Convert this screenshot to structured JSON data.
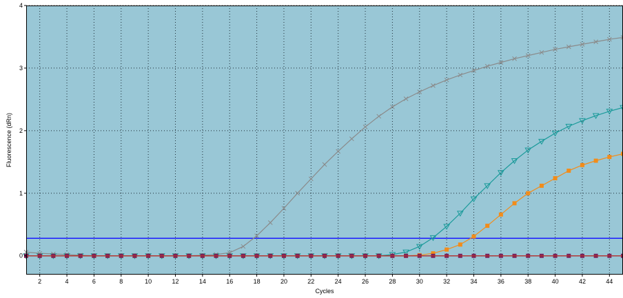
{
  "chart_data": {
    "type": "line",
    "title": "",
    "xlabel": "Cycles",
    "ylabel": "Fluorescence (dRn)",
    "xlim": [
      1,
      45
    ],
    "ylim": [
      -0.3,
      4
    ],
    "x_ticks": [
      "2",
      "4",
      "6",
      "8",
      "10",
      "12",
      "14",
      "16",
      "18",
      "20",
      "22",
      "24",
      "26",
      "28",
      "30",
      "32",
      "34",
      "36",
      "38",
      "40",
      "42",
      "44"
    ],
    "y_ticks": [
      "0",
      "1",
      "2",
      "3",
      "4"
    ],
    "grid": true,
    "legend": "none",
    "plot_background": "#99c7d6",
    "threshold": {
      "value": 0.28,
      "color": "#1a1aff"
    },
    "x": [
      1,
      2,
      3,
      4,
      5,
      6,
      7,
      8,
      9,
      10,
      11,
      12,
      13,
      14,
      15,
      16,
      17,
      18,
      19,
      20,
      21,
      22,
      23,
      24,
      25,
      26,
      27,
      28,
      29,
      30,
      31,
      32,
      33,
      34,
      35,
      36,
      37,
      38,
      39,
      40,
      41,
      42,
      43,
      44,
      45
    ],
    "series": [
      {
        "color": "#8a8a8a",
        "marker": "x",
        "values": [
          0.06,
          0.04,
          0.03,
          0.02,
          0.01,
          0.0,
          0.0,
          0.0,
          0.0,
          0.0,
          0.0,
          0.0,
          0.0,
          0.01,
          0.02,
          0.05,
          0.15,
          0.32,
          0.53,
          0.76,
          1.0,
          1.23,
          1.46,
          1.67,
          1.87,
          2.06,
          2.23,
          2.38,
          2.51,
          2.62,
          2.72,
          2.81,
          2.89,
          2.96,
          3.03,
          3.09,
          3.15,
          3.2,
          3.25,
          3.3,
          3.34,
          3.38,
          3.42,
          3.46,
          3.49
        ]
      },
      {
        "color": "#1a9a9a",
        "marker": "triangle-down",
        "values": [
          0.0,
          0.0,
          0.0,
          0.0,
          0.0,
          0.0,
          0.0,
          0.0,
          0.0,
          0.0,
          0.0,
          0.0,
          0.0,
          0.0,
          0.0,
          0.0,
          0.0,
          0.0,
          0.0,
          0.0,
          0.0,
          0.0,
          0.0,
          0.0,
          0.0,
          0.0,
          0.0,
          0.02,
          0.06,
          0.15,
          0.29,
          0.47,
          0.68,
          0.91,
          1.12,
          1.33,
          1.52,
          1.69,
          1.83,
          1.96,
          2.07,
          2.16,
          2.24,
          2.31,
          2.37
        ]
      },
      {
        "color": "#f28c1a",
        "marker": "square",
        "values": [
          0.0,
          0.0,
          0.0,
          0.0,
          0.0,
          0.0,
          0.0,
          0.0,
          0.0,
          0.0,
          0.0,
          0.0,
          0.0,
          0.0,
          0.0,
          0.0,
          0.0,
          0.0,
          0.0,
          0.0,
          0.0,
          0.0,
          0.0,
          0.0,
          0.0,
          0.0,
          0.0,
          0.0,
          0.0,
          0.01,
          0.04,
          0.1,
          0.18,
          0.31,
          0.48,
          0.66,
          0.84,
          1.0,
          1.12,
          1.24,
          1.36,
          1.45,
          1.52,
          1.58,
          1.63
        ]
      },
      {
        "color": "#7a1f5a",
        "marker": "square",
        "values": [
          0.0,
          0.0,
          0.0,
          0.0,
          0.0,
          0.0,
          0.0,
          0.0,
          0.0,
          0.0,
          0.0,
          0.0,
          0.0,
          0.0,
          0.0,
          0.0,
          0.0,
          0.0,
          0.0,
          0.0,
          0.0,
          0.0,
          0.0,
          0.0,
          0.0,
          0.0,
          0.0,
          0.0,
          0.0,
          0.0,
          0.0,
          0.0,
          0.0,
          0.0,
          0.0,
          0.0,
          0.0,
          0.0,
          0.0,
          0.0,
          0.0,
          0.0,
          0.0,
          0.0,
          0.0
        ]
      },
      {
        "color": "#b8342a",
        "marker": "none",
        "values": [
          0.0,
          0.0,
          0.0,
          0.0,
          0.0,
          0.0,
          0.0,
          0.0,
          0.0,
          0.0,
          0.0,
          0.0,
          0.0,
          0.0,
          0.0,
          0.0,
          0.0,
          0.0,
          0.0,
          0.0,
          0.0,
          0.0,
          0.0,
          0.0,
          0.0,
          0.0,
          0.0,
          0.0,
          0.0,
          0.0,
          0.0,
          0.0,
          0.0,
          0.0,
          0.0,
          0.0,
          0.0,
          0.0,
          0.0,
          0.0,
          0.0,
          0.0,
          0.0,
          0.0,
          0.0
        ]
      }
    ]
  }
}
